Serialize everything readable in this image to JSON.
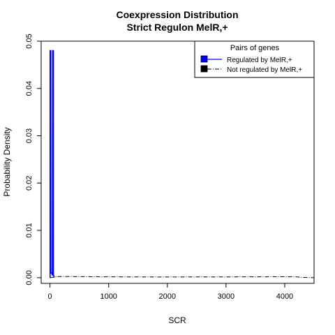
{
  "chart_data": {
    "type": "line",
    "title": "Coexpression Distribution",
    "subtitle": "Strict Regulon MelR,+",
    "xlabel": "SCR",
    "ylabel": "Probability Density",
    "xlim": [
      -150,
      4500
    ],
    "ylim": [
      -0.0012,
      0.05
    ],
    "x_ticks": [
      0,
      1000,
      2000,
      3000,
      4000
    ],
    "x_tick_labels": [
      "0",
      "1000",
      "2000",
      "3000",
      "4000"
    ],
    "y_ticks": [
      0.0,
      0.01,
      0.02,
      0.03,
      0.04,
      0.05
    ],
    "y_tick_labels": [
      "0.00",
      "0.01",
      "0.02",
      "0.03",
      "0.04",
      "0.05"
    ],
    "grid": false,
    "legend": {
      "title": "Pairs of genes",
      "position": "top-right",
      "entries": [
        "Regulated by  MelR,+",
        "Not regulated by  MelR,+"
      ]
    },
    "series": [
      {
        "name": "Regulated by  MelR,+",
        "color": "#0000ff",
        "style": "solid",
        "x": [
          0,
          2,
          2,
          8,
          14,
          14,
          20,
          30,
          40,
          46,
          52,
          58,
          58,
          64,
          70
        ],
        "y": [
          0.0,
          0.0,
          0.048,
          0.048,
          0.048,
          0.001,
          0.001,
          0.001,
          0.0005,
          0.048,
          0.048,
          0.048,
          0.0005,
          0.0005,
          0.0
        ]
      },
      {
        "name": "Not regulated by  MelR,+",
        "color": "#000000",
        "style": "dashdot",
        "x": [
          0,
          50,
          100,
          200,
          500,
          1000,
          2000,
          3000,
          4000,
          4200,
          4300,
          4500
        ],
        "y": [
          0.0,
          0.0001,
          0.0002,
          0.00025,
          0.00022,
          0.00018,
          0.00015,
          0.00017,
          0.0002,
          0.00018,
          5e-05,
          0.0
        ]
      }
    ]
  }
}
